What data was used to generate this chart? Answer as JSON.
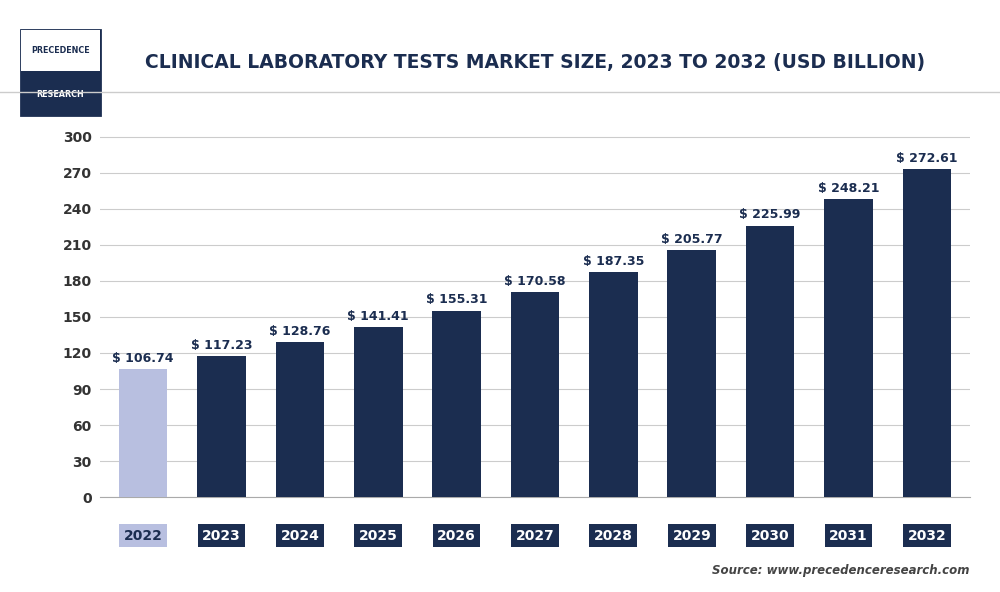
{
  "title": "CLINICAL LABORATORY TESTS MARKET SIZE, 2023 TO 2032 (USD BILLION)",
  "categories": [
    "2022",
    "2023",
    "2024",
    "2025",
    "2026",
    "2027",
    "2028",
    "2029",
    "2030",
    "2031",
    "2032"
  ],
  "values": [
    106.74,
    117.23,
    128.76,
    141.41,
    155.31,
    170.58,
    187.35,
    205.77,
    225.99,
    248.21,
    272.61
  ],
  "first_bar_color": "#b8bfe0",
  "dark_bar_color": "#1b2d50",
  "first_tick_bg": "#b8bfe0",
  "dark_tick_bg": "#1b2d50",
  "tick_text_color_light": "#1b2d50",
  "tick_text_color_dark": "#ffffff",
  "label_color": "#1b2d50",
  "ytick_color": "#333333",
  "background_color": "#ffffff",
  "plot_bg_color": "#ffffff",
  "grid_color": "#cccccc",
  "ylim": [
    0,
    320
  ],
  "yticks": [
    0,
    30,
    60,
    90,
    120,
    150,
    180,
    210,
    240,
    270,
    300
  ],
  "source_text": "Source: www.precedenceresearch.com",
  "title_fontsize": 13.5,
  "label_fontsize": 9,
  "tick_fontsize": 10,
  "ytick_fontsize": 10,
  "bar_width": 0.62,
  "logo_top_text": "PRECEDENCE",
  "logo_bot_text": "RESEARCH",
  "logo_top_bg": "#ffffff",
  "logo_bot_bg": "#1b2d50",
  "logo_border_color": "#1b2d50"
}
